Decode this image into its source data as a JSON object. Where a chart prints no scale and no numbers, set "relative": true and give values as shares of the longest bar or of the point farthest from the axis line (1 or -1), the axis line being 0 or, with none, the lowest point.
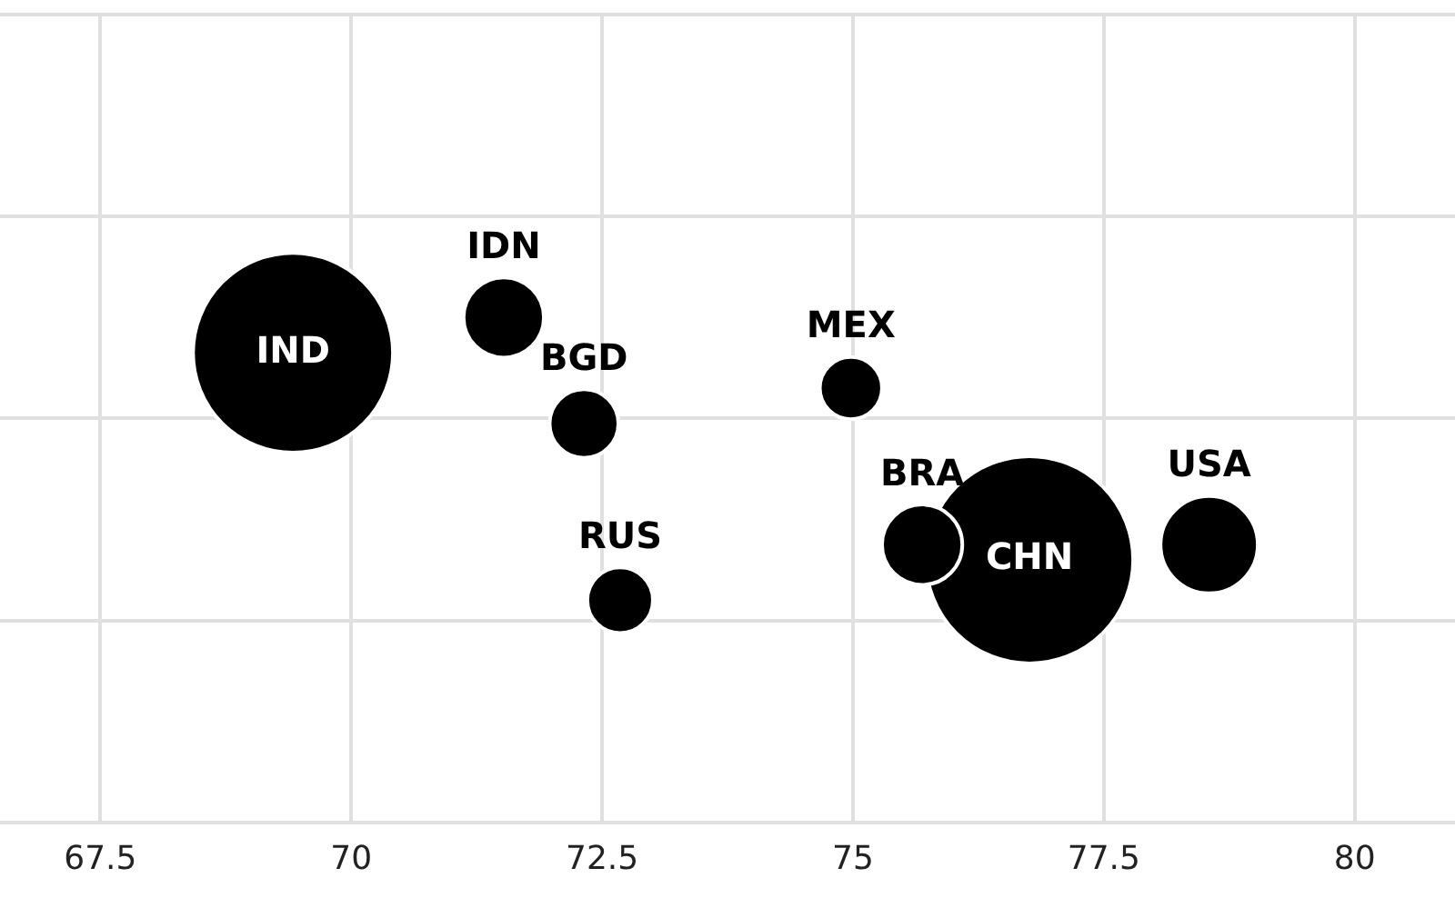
{
  "chart_data": {
    "type": "bubble",
    "relative": true,
    "grid": true,
    "tick_labels": "x",
    "x": [
      69.42,
      71.52,
      72.32,
      72.68,
      74.98,
      76.76,
      75.69,
      78.55
    ],
    "values": [
      0.93,
      1,
      0.79,
      0.44,
      0.86,
      0.52,
      0.55,
      0.55
    ],
    "sizes": [
      0.93,
      0.15,
      0.11,
      0.1,
      0.09,
      1,
      0.15,
      0.22
    ],
    "color": "#000000",
    "xlim": [
      66.5,
      81
    ],
    "xticks": [
      67.5,
      70,
      72.5,
      75,
      77.5,
      80
    ],
    "annotations": [
      {
        "text": "IND",
        "x": 69.42,
        "y": 0.93
      },
      {
        "text": "IDN",
        "x": 71.52,
        "y": 1
      },
      {
        "text": "BGD",
        "x": 72.32,
        "y": 0.79
      },
      {
        "text": "RUS",
        "x": 72.68,
        "y": 0.44
      },
      {
        "text": "MEX",
        "x": 74.98,
        "y": 0.86
      },
      {
        "text": "CHN",
        "x": 76.76,
        "y": 0.52
      },
      {
        "text": "BRA",
        "x": 75.69,
        "y": 0.55
      },
      {
        "text": "USA",
        "x": 78.55,
        "y": 0.55
      }
    ]
  }
}
